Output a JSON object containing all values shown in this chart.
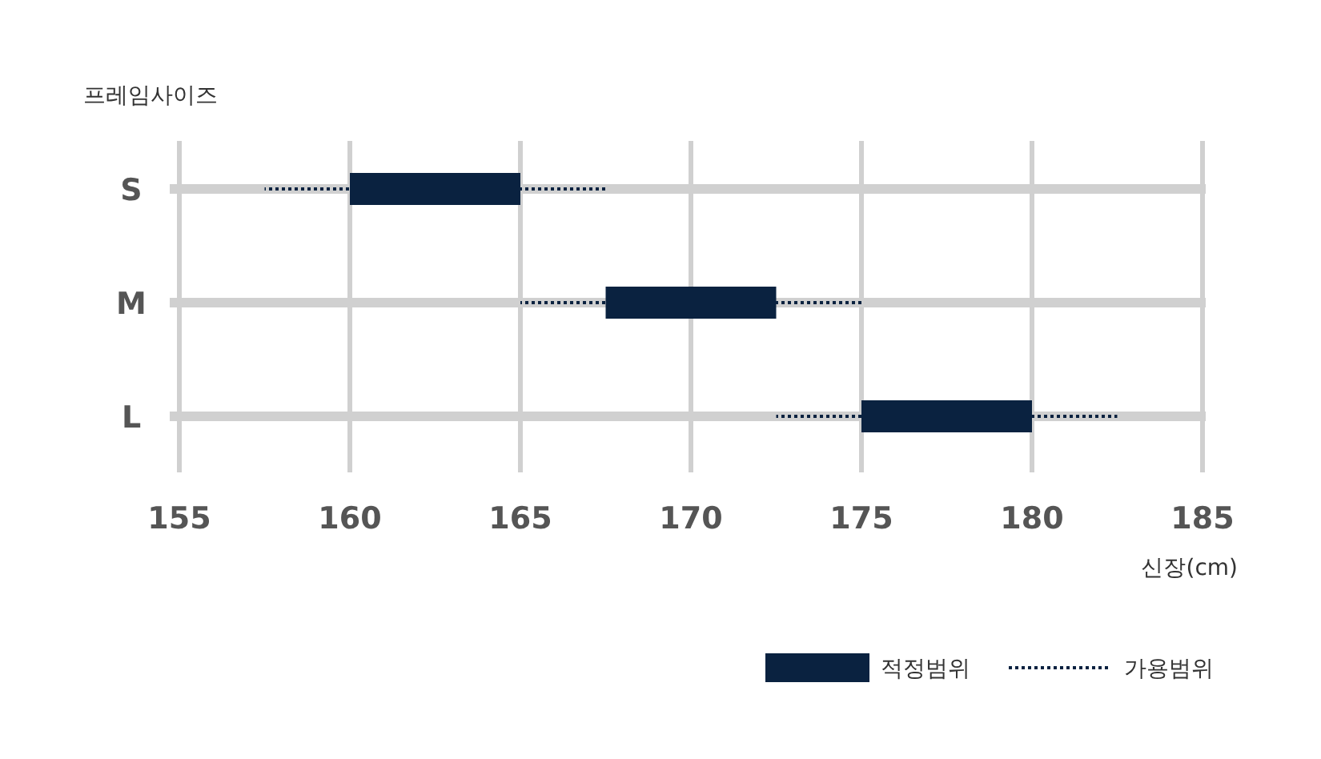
{
  "chart_data": {
    "type": "bar",
    "orientation": "horizontal",
    "xlabel": "신장(cm)",
    "ylabel": "프레임사이즈",
    "categories": [
      "S",
      "M",
      "L"
    ],
    "series": [
      {
        "name": "적정범위",
        "color": "#0a2240",
        "base": [
          160,
          167.5,
          175
        ],
        "values": [
          5,
          5,
          5
        ]
      },
      {
        "name": "가용범위",
        "color": "#0a2240",
        "line_style": "dotted",
        "base": [
          157.5,
          165,
          172.5
        ],
        "values": [
          10,
          10,
          10
        ]
      }
    ],
    "xlim": [
      155,
      185
    ],
    "xticks": [
      155,
      160,
      165,
      170,
      175,
      180,
      185
    ],
    "grid": true,
    "legend": "bottom right"
  }
}
